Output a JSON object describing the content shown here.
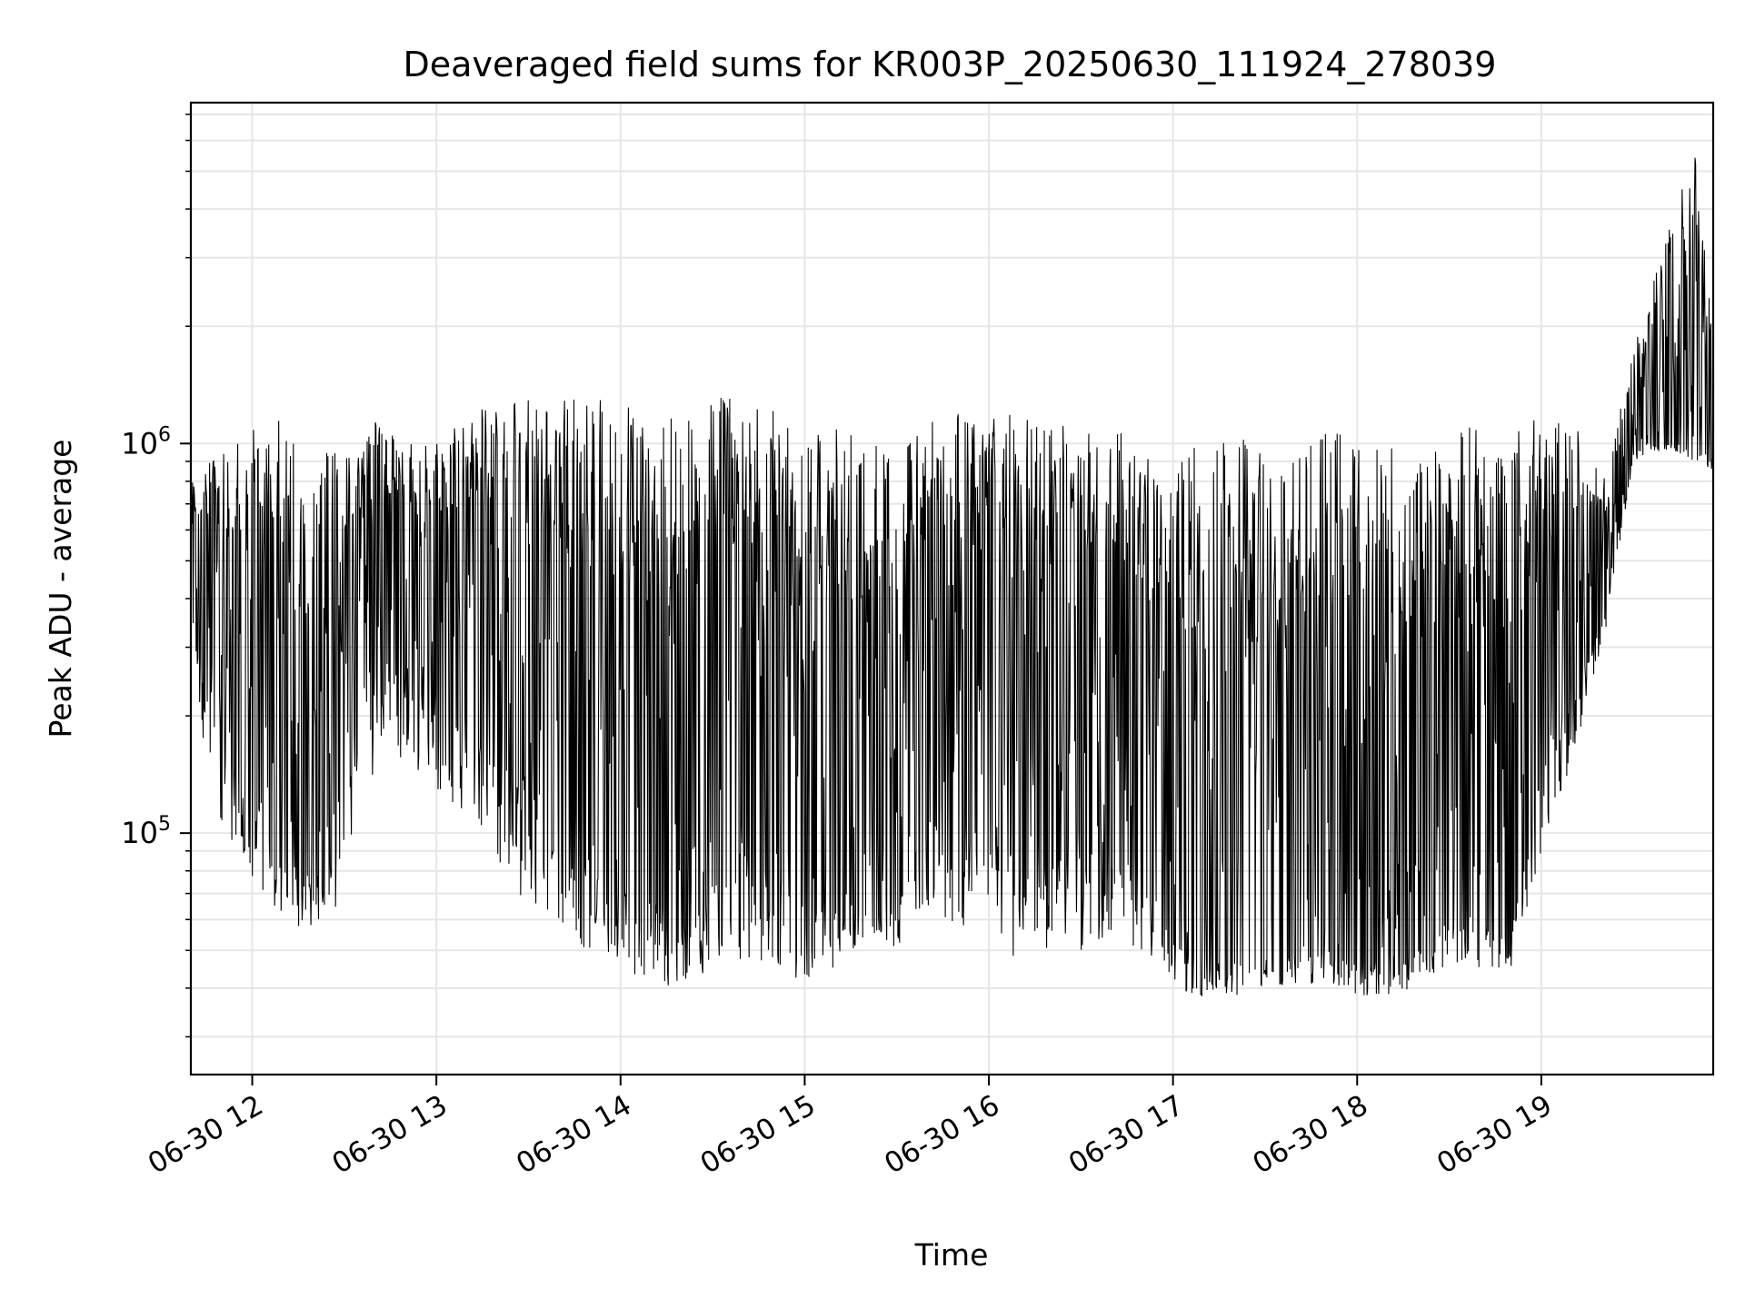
{
  "colors": {
    "background": "#ffffff",
    "line": "#000000",
    "grid": "#e6e6e6",
    "axis": "#000000"
  },
  "chart_data": {
    "type": "line",
    "title": "Deaveraged field sums for KR003P_20250630_111924_278039",
    "xlabel": "Time",
    "ylabel": "Peak ADU - average",
    "yscale": "log",
    "grid": true,
    "grid_minor": true,
    "legend": "none",
    "xlim": [
      "2025-06-30 11:40",
      "2025-06-30 19:56"
    ],
    "ylim": [
      24000,
      7500000
    ],
    "x_ticks": [
      "2025-06-30 12:00",
      "2025-06-30 13:00",
      "2025-06-30 14:00",
      "2025-06-30 15:00",
      "2025-06-30 16:00",
      "2025-06-30 17:00",
      "2025-06-30 18:00",
      "2025-06-30 19:00"
    ],
    "x_tick_labels": [
      "06-30 12",
      "06-30 13",
      "06-30 14",
      "06-30 15",
      "06-30 16",
      "06-30 17",
      "06-30 18",
      "06-30 19"
    ],
    "y_ticks": [
      100000,
      1000000
    ],
    "y_tick_labels": [
      {
        "base": "10",
        "exp": "5"
      },
      {
        "base": "10",
        "exp": "6"
      }
    ],
    "series_envelope": {
      "note_units": "time in HH:MM on 2025-06-30; values in ADU",
      "time": [
        "11:40",
        "11:50",
        "12:00",
        "12:10",
        "12:20",
        "12:30",
        "12:40",
        "12:50",
        "13:00",
        "13:10",
        "13:20",
        "13:30",
        "13:40",
        "13:50",
        "14:00",
        "14:10",
        "14:20",
        "14:30",
        "14:40",
        "14:50",
        "15:00",
        "15:10",
        "15:20",
        "15:30",
        "15:40",
        "15:50",
        "16:00",
        "16:10",
        "16:20",
        "16:30",
        "16:40",
        "16:50",
        "17:00",
        "17:10",
        "17:20",
        "17:30",
        "17:40",
        "17:50",
        "18:00",
        "18:10",
        "18:20",
        "18:30",
        "18:40",
        "18:50",
        "19:00",
        "19:10",
        "19:20",
        "19:30",
        "19:40",
        "19:50",
        "19:56"
      ],
      "high": [
        850000,
        950000,
        1100000,
        1150000,
        1000000,
        950000,
        1150000,
        1000000,
        1050000,
        1200000,
        1250000,
        1300000,
        1300000,
        1300000,
        1300000,
        1200000,
        1300000,
        1350000,
        1300000,
        1250000,
        1200000,
        1150000,
        1000000,
        1000000,
        1200000,
        1300000,
        1200000,
        1200000,
        1100000,
        1150000,
        1100000,
        1000000,
        900000,
        1050000,
        1100000,
        1050000,
        950000,
        1100000,
        1100000,
        1100000,
        1050000,
        1100000,
        1150000,
        1100000,
        1200000,
        1200000,
        800000,
        1700000,
        3500000,
        5500000,
        3000000
      ],
      "low": [
        250000,
        100000,
        75000,
        60000,
        55000,
        65000,
        150000,
        150000,
        130000,
        110000,
        80000,
        65000,
        55000,
        50000,
        45000,
        40000,
        40000,
        45000,
        45000,
        45000,
        40000,
        45000,
        55000,
        50000,
        65000,
        55000,
        55000,
        45000,
        50000,
        50000,
        55000,
        50000,
        40000,
        38000,
        38000,
        40000,
        40000,
        42000,
        38000,
        38000,
        40000,
        45000,
        45000,
        45000,
        85000,
        150000,
        300000,
        900000,
        950000,
        900000,
        850000
      ],
      "base": [
        500000,
        350000,
        200000,
        120000,
        110000,
        300000,
        450000,
        450000,
        400000,
        350000,
        300000,
        250000,
        200000,
        150000,
        120000,
        90000,
        80000,
        150000,
        200000,
        150000,
        120000,
        90000,
        70000,
        80000,
        250000,
        200000,
        250000,
        200000,
        200000,
        250000,
        200000,
        150000,
        70000,
        60000,
        55000,
        55000,
        60000,
        60000,
        55000,
        60000,
        65000,
        80000,
        75000,
        70000,
        300000,
        350000,
        400000,
        1200000,
        1100000,
        1050000,
        1000000
      ]
    }
  }
}
